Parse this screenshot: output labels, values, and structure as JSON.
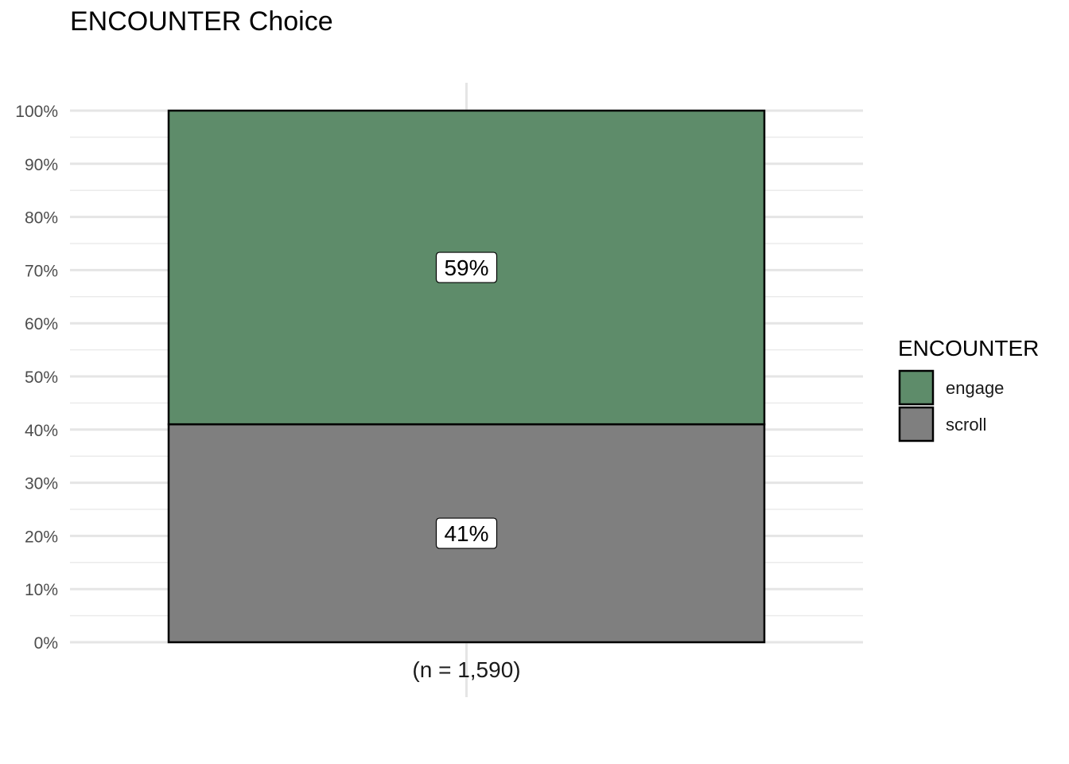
{
  "chart_data": {
    "type": "bar",
    "stacked": true,
    "title": "ENCOUNTER Choice",
    "xlabel": "",
    "ylabel": "",
    "categories": [
      "(n = 1,590)"
    ],
    "series": [
      {
        "name": "scroll",
        "values": [
          0.41
        ],
        "label": "41%",
        "color": "#7f7f7f"
      },
      {
        "name": "engage",
        "values": [
          0.59
        ],
        "label": "59%",
        "color": "#5e8c6a"
      }
    ],
    "ylim": [
      0,
      1
    ],
    "yticks": [
      "0%",
      "10%",
      "20%",
      "30%",
      "40%",
      "50%",
      "60%",
      "70%",
      "80%",
      "90%",
      "100%"
    ],
    "legend": {
      "title": "ENCOUNTER",
      "position": "right",
      "order": [
        "engage",
        "scroll"
      ]
    },
    "grid": true
  }
}
